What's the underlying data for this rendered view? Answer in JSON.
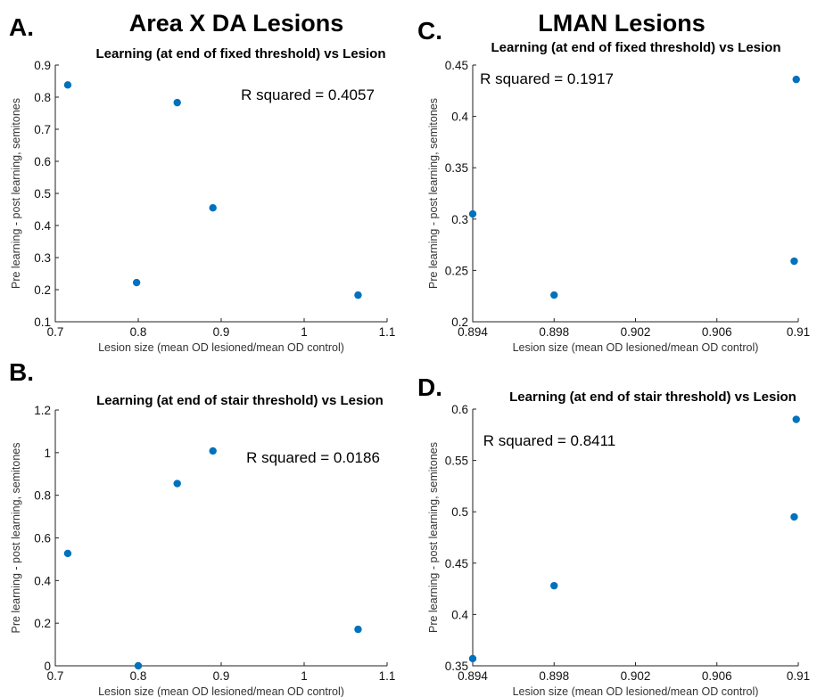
{
  "section_titles": {
    "left": "Area X DA Lesions",
    "right": "LMAN Lesions"
  },
  "chart_data": [
    {
      "panel": "A.",
      "type": "scatter",
      "title": "Learning (at end of fixed threshold) vs Lesion",
      "xlabel": "Lesion size (mean OD lesioned/mean OD control)",
      "ylabel": "Pre learning - post learning, semitones",
      "annotation": "R squared = 0.4057",
      "xlim": [
        0.7,
        1.1
      ],
      "ylim": [
        0.1,
        0.9
      ],
      "xticks": [
        0.7,
        0.8,
        0.9,
        1,
        1.1
      ],
      "xtick_labels": [
        "0.7",
        "0.8",
        "0.9",
        "1",
        "1.1"
      ],
      "yticks": [
        0.1,
        0.2,
        0.3,
        0.4,
        0.5,
        0.6,
        0.7,
        0.8,
        0.9
      ],
      "ytick_labels": [
        "0.1",
        "0.2",
        "0.3",
        "0.4",
        "0.5",
        "0.6",
        "0.7",
        "0.8",
        "0.9"
      ],
      "points": [
        {
          "x": 0.715,
          "y": 0.838
        },
        {
          "x": 0.798,
          "y": 0.222
        },
        {
          "x": 0.847,
          "y": 0.783
        },
        {
          "x": 0.89,
          "y": 0.455
        },
        {
          "x": 1.065,
          "y": 0.183
        }
      ],
      "color": "#0072bd"
    },
    {
      "panel": "C.",
      "type": "scatter",
      "title": "Learning (at end of fixed threshold) vs Lesion",
      "xlabel": "Lesion size (mean OD lesioned/mean OD control)",
      "ylabel": "Pre learning - post learning, semitones",
      "annotation": "R squared = 0.1917",
      "xlim": [
        0.894,
        0.91
      ],
      "ylim": [
        0.2,
        0.45
      ],
      "xticks": [
        0.894,
        0.898,
        0.902,
        0.906,
        0.91
      ],
      "xtick_labels": [
        "0.894",
        "0.898",
        "0.902",
        "0.906",
        "0.91"
      ],
      "yticks": [
        0.2,
        0.25,
        0.3,
        0.35,
        0.4,
        0.45
      ],
      "ytick_labels": [
        "0.2",
        "0.25",
        "0.3",
        "0.35",
        "0.4",
        "0.45"
      ],
      "points": [
        {
          "x": 0.894,
          "y": 0.305
        },
        {
          "x": 0.898,
          "y": 0.226
        },
        {
          "x": 0.9098,
          "y": 0.259
        },
        {
          "x": 0.9099,
          "y": 0.436
        }
      ],
      "color": "#0072bd"
    },
    {
      "panel": "B.",
      "type": "scatter",
      "title": "Learning (at end of stair threshold) vs Lesion",
      "xlabel": "Lesion size (mean OD lesioned/mean OD control)",
      "ylabel": "Pre learning - post learning, semitones",
      "annotation": "R squared = 0.0186",
      "xlim": [
        0.7,
        1.1
      ],
      "ylim": [
        0,
        1.2
      ],
      "xticks": [
        0.7,
        0.8,
        0.9,
        1,
        1.1
      ],
      "xtick_labels": [
        "0.7",
        "0.8",
        "0.9",
        "1",
        "1.1"
      ],
      "yticks": [
        0,
        0.2,
        0.4,
        0.6,
        0.8,
        1,
        1.2
      ],
      "ytick_labels": [
        "0",
        "0.2",
        "0.4",
        "0.6",
        "0.8",
        "1",
        "1.2"
      ],
      "points": [
        {
          "x": 0.715,
          "y": 0.527
        },
        {
          "x": 0.8,
          "y": 0.0
        },
        {
          "x": 0.847,
          "y": 0.855
        },
        {
          "x": 0.89,
          "y": 1.008
        },
        {
          "x": 1.065,
          "y": 0.171
        }
      ],
      "color": "#0072bd"
    },
    {
      "panel": "D.",
      "type": "scatter",
      "title": "Learning (at end of stair threshold) vs Lesion",
      "xlabel": "Lesion size (mean OD lesioned/mean OD control)",
      "ylabel": "Pre learning - post learning, semitones",
      "annotation": "R squared = 0.8411",
      "xlim": [
        0.894,
        0.91
      ],
      "ylim": [
        0.35,
        0.6
      ],
      "xticks": [
        0.894,
        0.898,
        0.902,
        0.906,
        0.91
      ],
      "xtick_labels": [
        "0.894",
        "0.898",
        "0.902",
        "0.906",
        "0.91"
      ],
      "yticks": [
        0.35,
        0.4,
        0.45,
        0.5,
        0.55,
        0.6
      ],
      "ytick_labels": [
        "0.35",
        "0.4",
        "0.45",
        "0.5",
        "0.55",
        "0.6"
      ],
      "points": [
        {
          "x": 0.894,
          "y": 0.357
        },
        {
          "x": 0.898,
          "y": 0.428
        },
        {
          "x": 0.9098,
          "y": 0.495
        },
        {
          "x": 0.9099,
          "y": 0.59
        }
      ],
      "color": "#0072bd"
    }
  ]
}
